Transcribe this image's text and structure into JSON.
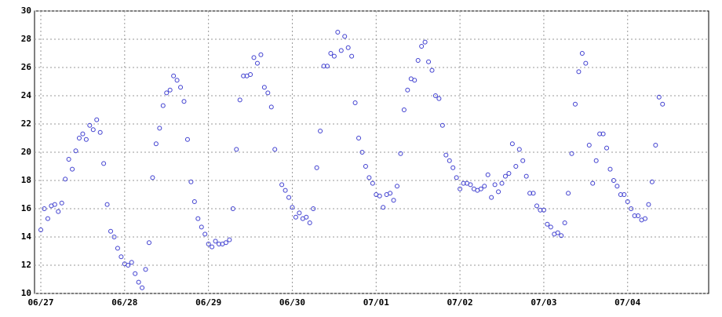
{
  "chart_data": {
    "type": "scatter",
    "color": "#4040d0",
    "grid": true,
    "xlim": [
      -1.8,
      191.2
    ],
    "xticks": [
      {
        "value": 0,
        "label": "06/27"
      },
      {
        "value": 24,
        "label": "06/28"
      },
      {
        "value": 48,
        "label": "06/29"
      },
      {
        "value": 72,
        "label": "06/30"
      },
      {
        "value": 96,
        "label": "07/01"
      },
      {
        "value": 120,
        "label": "07/02"
      },
      {
        "value": 144,
        "label": "07/03"
      },
      {
        "value": 168,
        "label": "07/04"
      }
    ],
    "ylim": [
      10,
      30
    ],
    "yticks": [
      10,
      12,
      14,
      16,
      18,
      20,
      22,
      24,
      26,
      28,
      30
    ],
    "x": [
      0,
      1,
      2,
      3,
      4,
      5,
      6,
      7,
      8,
      9,
      10,
      11,
      12,
      13,
      14,
      15,
      16,
      17,
      18,
      19,
      20,
      21,
      22,
      23,
      24,
      25,
      26,
      27,
      28,
      29,
      30,
      31,
      32,
      33,
      34,
      35,
      36,
      37,
      38,
      39,
      40,
      41,
      42,
      43,
      44,
      45,
      46,
      47,
      48,
      49,
      50,
      51,
      52,
      53,
      54,
      55,
      56,
      57,
      58,
      59,
      60,
      61,
      62,
      63,
      64,
      65,
      66,
      67,
      69,
      70,
      71,
      72,
      73,
      74,
      75,
      76,
      77,
      78,
      79,
      80,
      81,
      82,
      83,
      84,
      85,
      86,
      87,
      88,
      89,
      90,
      91,
      92,
      93,
      94,
      95,
      96,
      97,
      98,
      99,
      100,
      101,
      102,
      103,
      104,
      105,
      106,
      107,
      108,
      109,
      110,
      111,
      112,
      113,
      114,
      115,
      116,
      117,
      118,
      119,
      120,
      121,
      122,
      123,
      124,
      125,
      126,
      127,
      128,
      129,
      130,
      131,
      132,
      133,
      134,
      135,
      136,
      137,
      138,
      139,
      140,
      141,
      142,
      143,
      144,
      145,
      146,
      147,
      148,
      149,
      150,
      151,
      152,
      153,
      154,
      155,
      156,
      157,
      158,
      159,
      160,
      161,
      162,
      163,
      164,
      165,
      166,
      167,
      168,
      169,
      170,
      171,
      172,
      173,
      174,
      175,
      176,
      177,
      178
    ],
    "values": [
      14.5,
      16.0,
      15.3,
      16.2,
      16.3,
      15.8,
      16.4,
      18.1,
      19.5,
      18.8,
      20.1,
      21.0,
      21.3,
      20.9,
      21.9,
      21.6,
      22.3,
      21.4,
      19.2,
      16.3,
      14.4,
      14.0,
      13.2,
      12.6,
      12.1,
      12.0,
      12.2,
      11.4,
      10.8,
      10.4,
      11.7,
      13.6,
      18.2,
      20.6,
      21.7,
      23.3,
      24.2,
      24.4,
      25.4,
      25.1,
      24.6,
      23.6,
      20.9,
      17.9,
      16.5,
      15.3,
      14.7,
      14.2,
      13.5,
      13.3,
      13.7,
      13.5,
      13.5,
      13.6,
      13.8,
      16.0,
      20.2,
      23.7,
      25.4,
      25.4,
      25.5,
      26.7,
      26.3,
      26.9,
      24.6,
      24.2,
      23.2,
      20.2,
      17.7,
      17.3,
      16.8,
      16.1,
      15.4,
      15.7,
      15.3,
      15.4,
      15.0,
      16.0,
      18.9,
      21.5,
      26.1,
      26.1,
      27.0,
      26.8,
      28.5,
      27.2,
      28.2,
      27.4,
      26.8,
      23.5,
      21.0,
      20.0,
      19.0,
      18.2,
      17.8,
      17.0,
      16.9,
      16.1,
      17.0,
      17.1,
      16.6,
      17.6,
      19.9,
      23.0,
      24.4,
      25.2,
      25.1,
      26.5,
      27.5,
      27.8,
      26.4,
      25.8,
      24.0,
      23.8,
      21.9,
      19.8,
      19.4,
      18.9,
      18.2,
      17.4,
      17.8,
      17.8,
      17.7,
      17.4,
      17.3,
      17.4,
      17.6,
      18.4,
      16.8,
      17.7,
      17.2,
      17.8,
      18.3,
      18.5,
      20.6,
      19.0,
      20.2,
      19.4,
      18.3,
      17.1,
      17.1,
      16.2,
      15.9,
      15.9,
      14.9,
      14.7,
      14.2,
      14.3,
      14.1,
      15.0,
      17.1,
      19.9,
      23.4,
      25.7,
      27.0,
      26.3,
      20.5,
      17.8,
      19.4,
      21.3,
      21.3,
      20.3,
      18.8,
      18.0,
      17.6,
      17.0,
      17.0,
      16.5,
      16.0,
      15.5,
      15.5,
      15.2,
      15.3,
      16.3,
      17.9,
      20.5,
      23.9,
      23.4
    ]
  }
}
